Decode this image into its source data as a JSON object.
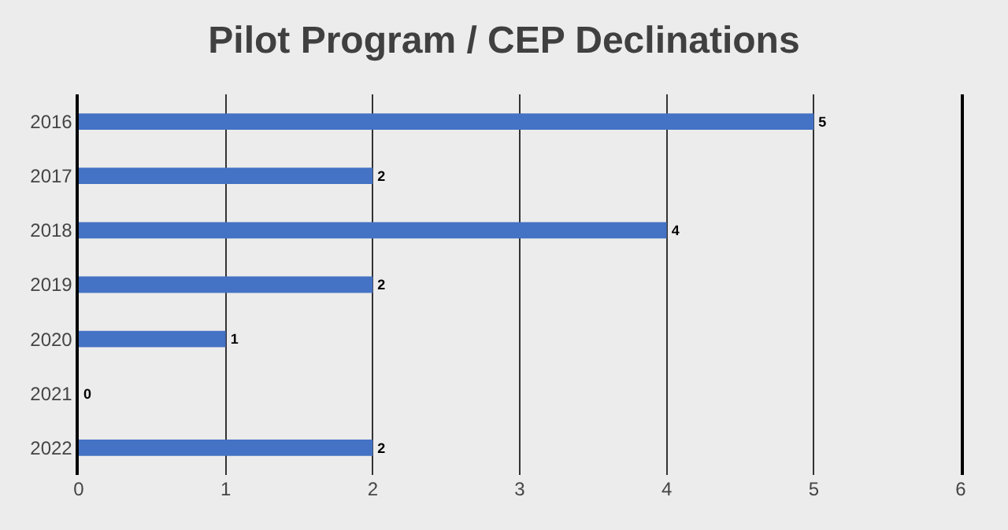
{
  "chart_data": {
    "type": "bar",
    "title": "Pilot Program / CEP Declinations",
    "orientation": "horizontal",
    "categories": [
      "2016",
      "2017",
      "2018",
      "2019",
      "2020",
      "2021",
      "2022"
    ],
    "values": [
      5,
      2,
      4,
      2,
      1,
      0,
      2
    ],
    "color": "#4472c4",
    "xlim": [
      0,
      6
    ],
    "xticks": [
      0,
      1,
      2,
      3,
      4,
      5,
      6
    ],
    "grid": "x",
    "data_labels": true
  }
}
